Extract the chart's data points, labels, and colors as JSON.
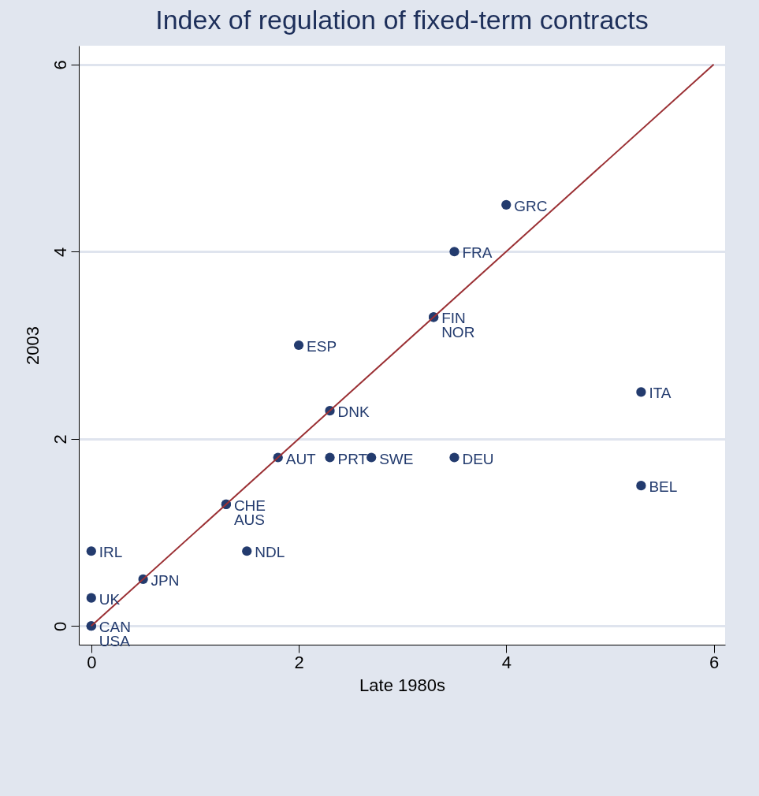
{
  "chart_data": {
    "type": "scatter",
    "title": "Index of regulation of fixed-term contracts",
    "xlabel": "Late 1980s",
    "ylabel": "2003",
    "xlim": [
      -0.12,
      6.11
    ],
    "xticks": [
      0,
      2,
      4,
      6
    ],
    "ylim": [
      -0.2,
      6.2
    ],
    "yticks": [
      0,
      2,
      4,
      6
    ],
    "grid": "y",
    "series": [
      {
        "marker": "circle",
        "color": "#233b6e",
        "x": [
          4.0,
          3.5,
          3.3,
          3.3,
          2.0,
          5.3,
          2.3,
          1.8,
          2.3,
          2.7,
          3.5,
          5.3,
          1.3,
          1.3,
          1.5,
          0,
          0.5,
          0,
          0,
          0
        ],
        "values": [
          4.5,
          4.0,
          3.3,
          3.3,
          3.0,
          2.5,
          2.3,
          1.8,
          1.8,
          1.8,
          1.8,
          1.5,
          1.3,
          1.3,
          0.8,
          0.8,
          0.5,
          0.3,
          0,
          0
        ]
      },
      {
        "type": "line",
        "color": "#9b3034",
        "x": [
          0,
          6
        ],
        "values": [
          0,
          6
        ]
      }
    ],
    "annotations": [
      {
        "text": "GRC",
        "x": 4.0,
        "y": 4.5
      },
      {
        "text": "FRA",
        "x": 3.5,
        "y": 4.0
      },
      {
        "text": "FIN",
        "x": 3.3,
        "y": 3.3
      },
      {
        "text": "NOR",
        "x": 3.3,
        "y": 3.3
      },
      {
        "text": "ESP",
        "x": 2.0,
        "y": 3.0
      },
      {
        "text": "ITA",
        "x": 5.3,
        "y": 2.5
      },
      {
        "text": "DNK",
        "x": 2.3,
        "y": 2.3
      },
      {
        "text": "AUT",
        "x": 1.8,
        "y": 1.8
      },
      {
        "text": "PRT",
        "x": 2.3,
        "y": 1.8
      },
      {
        "text": "SWE",
        "x": 2.7,
        "y": 1.8
      },
      {
        "text": "DEU",
        "x": 3.5,
        "y": 1.8
      },
      {
        "text": "BEL",
        "x": 5.3,
        "y": 1.5
      },
      {
        "text": "CHE",
        "x": 1.3,
        "y": 1.3
      },
      {
        "text": "AUS",
        "x": 1.3,
        "y": 1.3
      },
      {
        "text": "NDL",
        "x": 1.5,
        "y": 0.8
      },
      {
        "text": "IRL",
        "x": 0,
        "y": 0.8
      },
      {
        "text": "JPN",
        "x": 0.5,
        "y": 0.5
      },
      {
        "text": "UK",
        "x": 0,
        "y": 0.3
      },
      {
        "text": "CAN",
        "x": 0,
        "y": 0
      },
      {
        "text": "USA",
        "x": 0,
        "y": 0
      }
    ]
  }
}
